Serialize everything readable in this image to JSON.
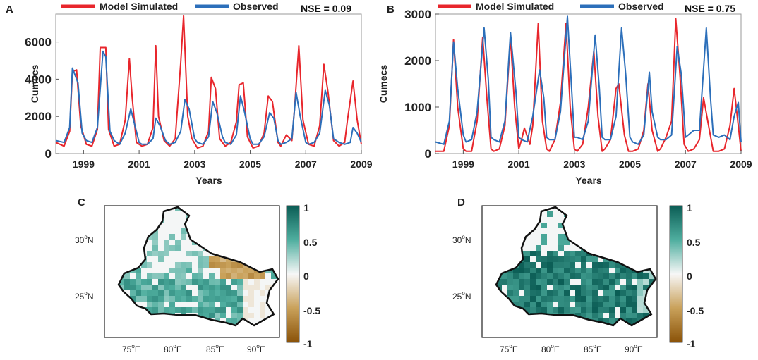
{
  "colors": {
    "simulated": "#e8262c",
    "observed": "#2c6fba",
    "axis": "#222222",
    "outline": "#111111"
  },
  "chart_data": [
    {
      "type": "line",
      "panel_label": "A",
      "xlabel": "Years",
      "ylabel": "Cumecs",
      "xlim": [
        1998.0,
        2009.0
      ],
      "ylim": [
        0,
        7500
      ],
      "yticks": [
        0,
        2000,
        4000,
        6000
      ],
      "ytick_labels": [
        "0",
        "2000",
        "4000",
        "6000"
      ],
      "xticks": [
        1999,
        2001,
        2003,
        2005,
        2007,
        2009
      ],
      "xtick_labels": [
        "1999",
        "2001",
        "2003",
        "2005",
        "2007",
        "2009"
      ],
      "legend": {
        "placement": "top",
        "entries": [
          "Model Simulated",
          "Observed"
        ]
      },
      "annotation": "NSE = 0.09",
      "series": [
        {
          "name": "Model Simulated",
          "color_key": "simulated",
          "x": [
            1998.0,
            1998.3,
            1998.5,
            1998.6,
            1998.75,
            1998.9,
            1999.1,
            1999.3,
            1999.5,
            1999.6,
            1999.8,
            1999.9,
            2000.1,
            2000.3,
            2000.5,
            2000.65,
            2000.75,
            2000.9,
            2001.1,
            2001.3,
            2001.5,
            2001.6,
            2001.7,
            2001.9,
            2002.1,
            2002.3,
            2002.5,
            2002.6,
            2002.75,
            2002.9,
            2003.1,
            2003.3,
            2003.5,
            2003.6,
            2003.75,
            2003.9,
            2004.1,
            2004.3,
            2004.5,
            2004.6,
            2004.75,
            2004.9,
            2005.1,
            2005.3,
            2005.5,
            2005.65,
            2005.8,
            2006.0,
            2006.1,
            2006.3,
            2006.5,
            2006.6,
            2006.75,
            2006.9,
            2007.1,
            2007.3,
            2007.5,
            2007.65,
            2007.8,
            2008.0,
            2008.2,
            2008.4,
            2008.5,
            2008.7,
            2008.85,
            2009.0
          ],
          "values": [
            600,
            400,
            1200,
            4400,
            4500,
            1500,
            500,
            400,
            1300,
            5700,
            5700,
            1300,
            400,
            500,
            1800,
            5100,
            3000,
            600,
            400,
            500,
            1400,
            5800,
            2000,
            700,
            400,
            800,
            4900,
            7400,
            2000,
            800,
            300,
            400,
            1200,
            4100,
            3500,
            800,
            400,
            600,
            1700,
            3700,
            3800,
            900,
            300,
            400,
            1100,
            3100,
            2800,
            600,
            400,
            1000,
            700,
            2500,
            5800,
            1800,
            500,
            400,
            1500,
            4800,
            3300,
            700,
            400,
            600,
            1800,
            3900,
            1800,
            500
          ]
        },
        {
          "name": "Observed",
          "color_key": "observed",
          "x": [
            1998.0,
            1998.3,
            1998.5,
            1998.6,
            1998.8,
            1998.95,
            1999.1,
            1999.3,
            1999.5,
            1999.7,
            1999.8,
            1999.95,
            2000.1,
            2000.3,
            2000.5,
            2000.7,
            2000.85,
            2001.0,
            2001.1,
            2001.3,
            2001.5,
            2001.6,
            2001.75,
            2001.95,
            2002.1,
            2002.3,
            2002.5,
            2002.65,
            2002.8,
            2003.0,
            2003.1,
            2003.3,
            2003.5,
            2003.65,
            2003.8,
            2004.0,
            2004.1,
            2004.3,
            2004.5,
            2004.65,
            2004.8,
            2005.0,
            2005.1,
            2005.3,
            2005.5,
            2005.7,
            2005.85,
            2006.0,
            2006.1,
            2006.3,
            2006.5,
            2006.65,
            2006.8,
            2007.0,
            2007.1,
            2007.3,
            2007.5,
            2007.7,
            2007.85,
            2008.0,
            2008.2,
            2008.4,
            2008.6,
            2008.7,
            2008.85,
            2009.0
          ],
          "values": [
            700,
            600,
            1400,
            4600,
            3800,
            1100,
            700,
            600,
            1400,
            5500,
            5200,
            1200,
            700,
            500,
            1100,
            2400,
            1500,
            600,
            500,
            500,
            800,
            1900,
            1500,
            700,
            500,
            600,
            1200,
            2900,
            2400,
            800,
            600,
            500,
            900,
            2800,
            2200,
            900,
            600,
            500,
            1000,
            3100,
            2200,
            800,
            500,
            500,
            900,
            2200,
            1900,
            700,
            500,
            600,
            800,
            3300,
            2000,
            600,
            500,
            600,
            1100,
            3400,
            2600,
            800,
            600,
            500,
            600,
            1400,
            1100,
            600
          ]
        }
      ]
    },
    {
      "type": "line",
      "panel_label": "B",
      "xlabel": "Years",
      "ylabel": "Cumecs",
      "xlim": [
        1998.0,
        2009.0
      ],
      "ylim": [
        0,
        3000
      ],
      "yticks": [
        0,
        1000,
        2000,
        3000
      ],
      "ytick_labels": [
        "0",
        "1000",
        "2000",
        "3000"
      ],
      "xticks": [
        1999,
        2001,
        2003,
        2005,
        2007,
        2009
      ],
      "xtick_labels": [
        "1999",
        "2001",
        "2003",
        "2005",
        "2007",
        "2009"
      ],
      "legend": {
        "placement": "top",
        "entries": [
          "Model Simulated",
          "Observed"
        ]
      },
      "annotation": "NSE = 0.75",
      "series": [
        {
          "name": "Model Simulated",
          "color_key": "simulated",
          "x": [
            1998.0,
            1998.3,
            1998.5,
            1998.65,
            1998.8,
            1999.0,
            1999.1,
            1999.3,
            1999.5,
            1999.7,
            1999.85,
            2000.0,
            2000.1,
            2000.3,
            2000.5,
            2000.7,
            2000.85,
            2001.0,
            2001.1,
            2001.2,
            2001.4,
            2001.5,
            2001.7,
            2001.85,
            2002.0,
            2002.1,
            2002.3,
            2002.5,
            2002.7,
            2002.85,
            2003.0,
            2003.1,
            2003.3,
            2003.5,
            2003.7,
            2003.85,
            2004.0,
            2004.1,
            2004.3,
            2004.5,
            2004.6,
            2004.8,
            2004.95,
            2005.1,
            2005.3,
            2005.5,
            2005.65,
            2005.8,
            2006.0,
            2006.1,
            2006.3,
            2006.5,
            2006.65,
            2006.8,
            2006.95,
            2007.1,
            2007.3,
            2007.5,
            2007.65,
            2007.8,
            2008.0,
            2008.2,
            2008.4,
            2008.6,
            2008.75,
            2008.9,
            2009.0
          ],
          "values": [
            50,
            50,
            600,
            2450,
            1000,
            100,
            50,
            50,
            700,
            2500,
            1200,
            100,
            50,
            100,
            600,
            2500,
            1000,
            100,
            300,
            550,
            200,
            600,
            2800,
            700,
            100,
            50,
            300,
            1100,
            2800,
            1000,
            100,
            50,
            200,
            1000,
            2200,
            800,
            50,
            100,
            300,
            1400,
            1500,
            400,
            50,
            50,
            100,
            500,
            1500,
            500,
            50,
            100,
            350,
            700,
            2900,
            1700,
            200,
            50,
            100,
            300,
            1200,
            700,
            50,
            50,
            100,
            600,
            1400,
            600,
            50
          ]
        },
        {
          "name": "Observed",
          "color_key": "observed",
          "x": [
            1998.0,
            1998.3,
            1998.5,
            1998.65,
            1998.8,
            1999.0,
            1999.1,
            1999.3,
            1999.5,
            1999.75,
            1999.9,
            2000.0,
            2000.1,
            2000.3,
            2000.5,
            2000.7,
            2000.9,
            2001.0,
            2001.1,
            2001.3,
            2001.5,
            2001.75,
            2001.9,
            2002.0,
            2002.1,
            2002.3,
            2002.5,
            2002.75,
            2002.9,
            2003.0,
            2003.1,
            2003.3,
            2003.5,
            2003.75,
            2003.9,
            2004.0,
            2004.1,
            2004.3,
            2004.5,
            2004.7,
            2004.85,
            2005.0,
            2005.1,
            2005.3,
            2005.5,
            2005.7,
            2005.8,
            2006.0,
            2006.1,
            2006.3,
            2006.5,
            2006.7,
            2006.85,
            2007.0,
            2007.1,
            2007.3,
            2007.5,
            2007.75,
            2007.9,
            2008.0,
            2008.2,
            2008.4,
            2008.6,
            2008.75,
            2008.9,
            2009.0
          ],
          "values": [
            250,
            200,
            700,
            2400,
            1400,
            400,
            250,
            300,
            900,
            2700,
            1600,
            350,
            300,
            250,
            700,
            2600,
            1300,
            350,
            300,
            250,
            800,
            1800,
            1200,
            350,
            300,
            300,
            900,
            2950,
            1400,
            350,
            350,
            300,
            700,
            2550,
            1400,
            350,
            300,
            300,
            800,
            2700,
            1700,
            350,
            250,
            200,
            400,
            1750,
            900,
            350,
            300,
            300,
            400,
            2300,
            1700,
            350,
            400,
            500,
            500,
            2700,
            1200,
            400,
            350,
            400,
            300,
            800,
            1100,
            250
          ]
        }
      ]
    }
  ],
  "maps": [
    {
      "panel_label": "C",
      "lat_labels": [
        {
          "value": "30",
          "unit": "N"
        },
        {
          "value": "25",
          "unit": "N"
        }
      ],
      "lon_labels": [
        {
          "value": "75",
          "unit": "E"
        },
        {
          "value": "80",
          "unit": "E"
        },
        {
          "value": "85",
          "unit": "E"
        },
        {
          "value": "90",
          "unit": "E"
        }
      ],
      "colorbar": {
        "range": [
          -1,
          1
        ],
        "tick_labels": [
          "1",
          "0.5",
          "0",
          "-0.5",
          "-1"
        ]
      }
    },
    {
      "panel_label": "D",
      "lat_labels": [
        {
          "value": "30",
          "unit": "N"
        },
        {
          "value": "25",
          "unit": "N"
        }
      ],
      "lon_labels": [
        {
          "value": "75",
          "unit": "E"
        },
        {
          "value": "80",
          "unit": "E"
        },
        {
          "value": "85",
          "unit": "E"
        },
        {
          "value": "90",
          "unit": "E"
        }
      ],
      "colorbar": {
        "range": [
          -1,
          1
        ],
        "tick_labels": [
          "1",
          "0.5",
          "0",
          "-0.5",
          "-1"
        ]
      }
    }
  ],
  "figure": {
    "degree_symbol": "o"
  }
}
